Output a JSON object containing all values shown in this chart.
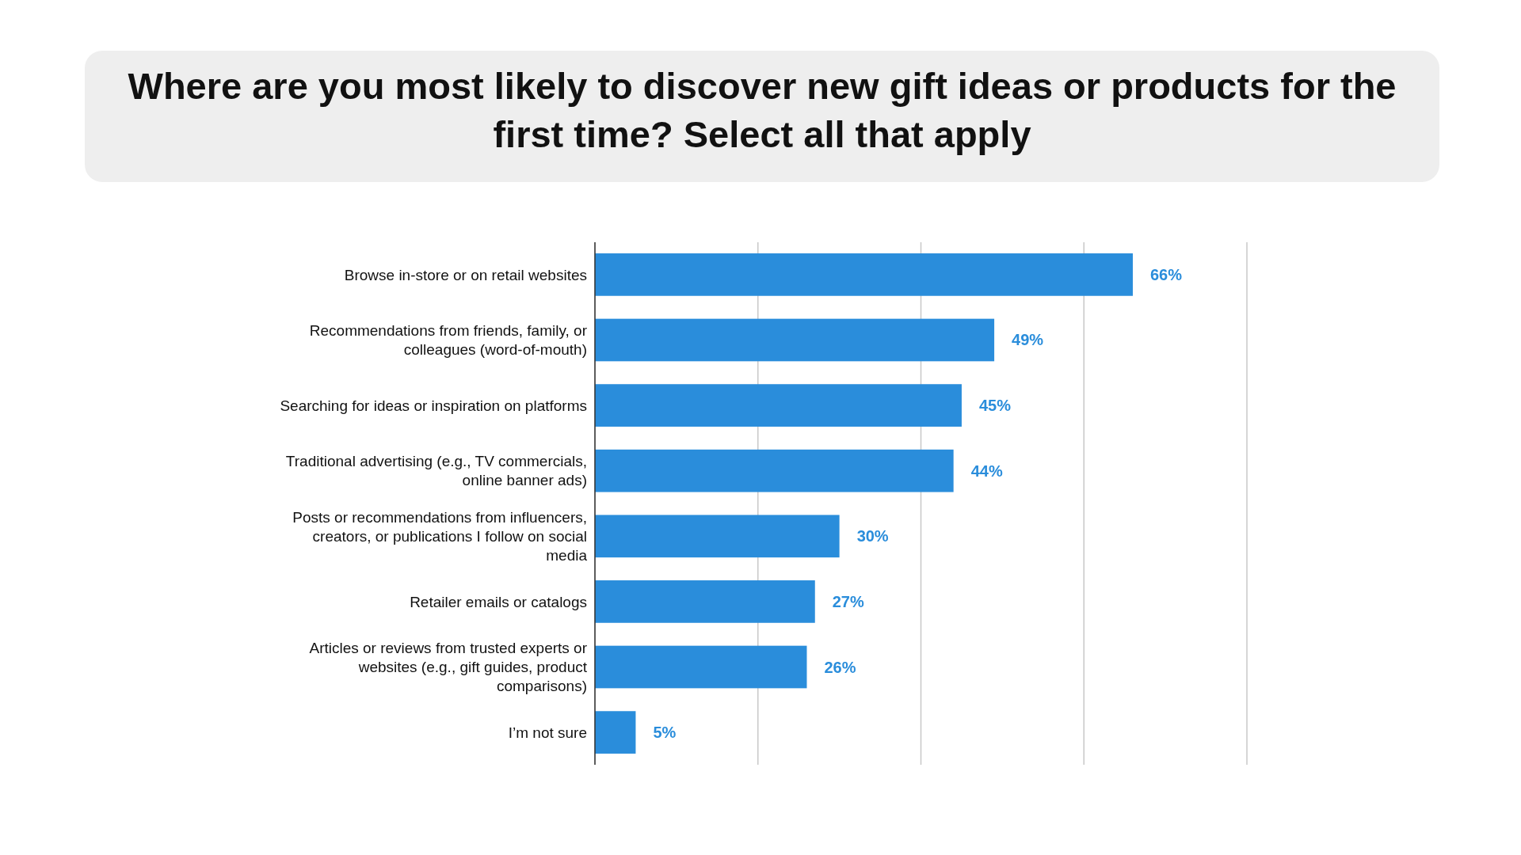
{
  "chart_data": {
    "type": "bar",
    "orientation": "horizontal",
    "title": "Where are you most likely to discover new gift ideas or products for the first time? Select all that apply",
    "categories": [
      "Browse in-store or on retail websites",
      "Recommendations from friends, family, or colleagues (word-of-mouth)",
      "Searching for ideas or inspiration on platforms",
      "Traditional advertising (e.g., TV commercials, online banner ads)",
      "Posts or recommendations from influencers, creators, or publications I follow on social media",
      "Retailer emails or catalogs",
      "Articles or reviews from trusted experts or websites (e.g., gift guides, product comparisons)",
      "I’m not sure"
    ],
    "values": [
      66,
      49,
      45,
      44,
      30,
      27,
      26,
      5
    ],
    "value_labels": [
      "66%",
      "49%",
      "45%",
      "44%",
      "30%",
      "27%",
      "26%",
      "5%"
    ],
    "color": "#2a8ddb",
    "xlim": [
      0,
      80
    ],
    "xticks": [
      {
        "value": 0,
        "label": null
      },
      {
        "value": 20,
        "label": null
      },
      {
        "value": 40,
        "label": null
      },
      {
        "value": 60,
        "label": null
      },
      {
        "value": 80,
        "label": null
      }
    ],
    "grid": "x",
    "tick_labels": "y"
  }
}
